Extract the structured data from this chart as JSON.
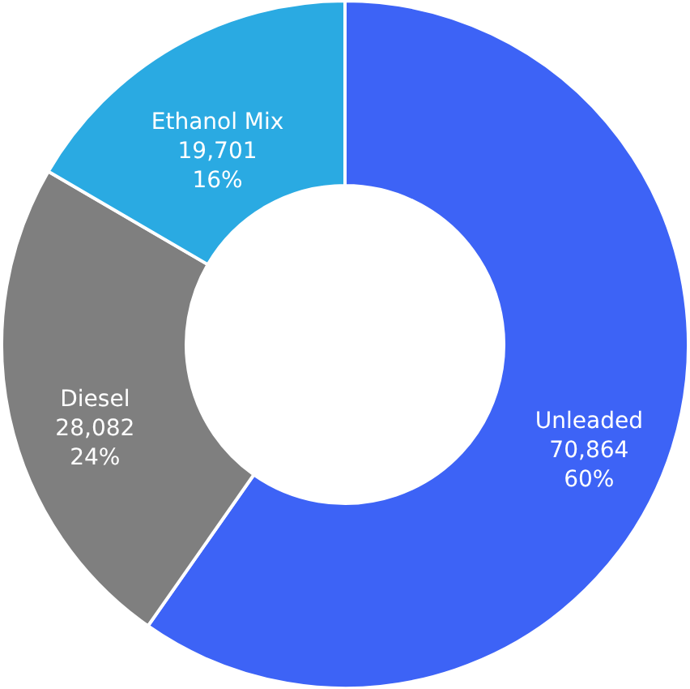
{
  "chart_data": {
    "type": "donut",
    "categories": [
      "Unleaded",
      "Diesel",
      "Ethanol Mix"
    ],
    "values": [
      70864,
      28082,
      19701
    ],
    "colors": [
      "#3d63f6",
      "#7f7f7f",
      "#2aaae2"
    ],
    "value_labels": [
      "70,864\n60%",
      "28,082\n24%",
      "19,701\n16%"
    ]
  }
}
